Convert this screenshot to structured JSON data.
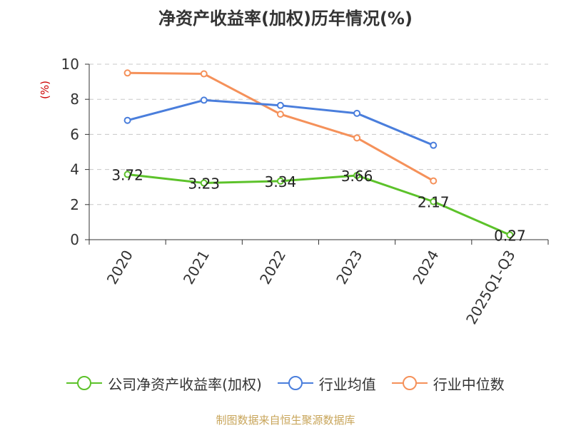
{
  "chart_data": {
    "type": "line",
    "title": "净资产收益率(加权)历年情况(%)",
    "ylabel": "(%)",
    "xlabel": "",
    "ylim": [
      0,
      10
    ],
    "yticks": [
      "0",
      "2",
      "4",
      "6",
      "8",
      "10"
    ],
    "categories": [
      "2020",
      "2021",
      "2022",
      "2023",
      "2024",
      "2025Q1-Q3"
    ],
    "grid": true,
    "legend_position": "bottom",
    "series": [
      {
        "name": "公司净资产收益率(加权)",
        "color": "#5cc22a",
        "values": [
          3.72,
          3.23,
          3.34,
          3.66,
          2.17,
          0.27
        ],
        "labels": [
          "3.72",
          "3.23",
          "3.34",
          "3.66",
          "2.17",
          "0.27"
        ]
      },
      {
        "name": "行业均值",
        "color": "#4a7edc",
        "values": [
          6.8,
          7.95,
          7.65,
          7.2,
          5.38,
          null
        ]
      },
      {
        "name": "行业中位数",
        "color": "#f5915a",
        "values": [
          9.5,
          9.45,
          7.15,
          5.8,
          3.35,
          null
        ]
      }
    ],
    "source": "制图数据来自恒生聚源数据库"
  }
}
